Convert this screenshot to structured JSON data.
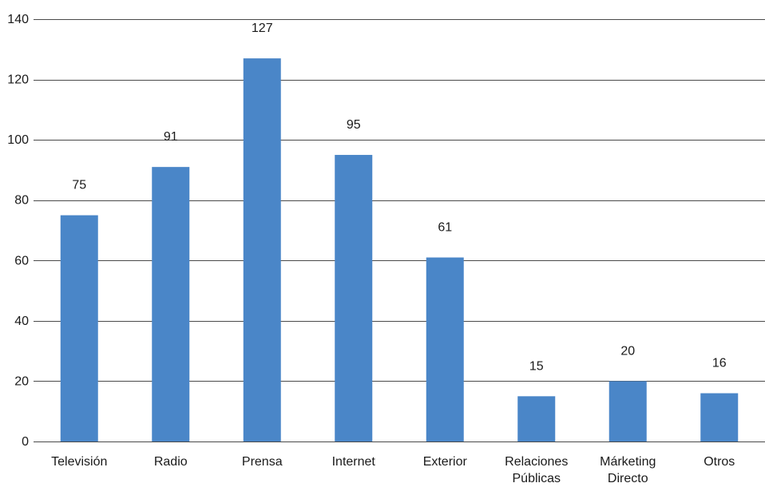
{
  "chart_data": {
    "type": "bar",
    "categories": [
      [
        "Televisión"
      ],
      [
        "Radio"
      ],
      [
        "Prensa"
      ],
      [
        "Internet"
      ],
      [
        "Exterior"
      ],
      [
        "Relaciones",
        "Públicas"
      ],
      [
        "Márketing",
        "Directo"
      ],
      [
        "Otros"
      ]
    ],
    "values": [
      75,
      91,
      127,
      95,
      61,
      15,
      20,
      16
    ],
    "ylim": [
      0,
      140
    ],
    "yticks": [
      0,
      20,
      40,
      60,
      80,
      100,
      120,
      140
    ],
    "grid": true,
    "legend": "none",
    "bar_color": "#4a86c8",
    "title": "",
    "xlabel": "",
    "ylabel": ""
  }
}
